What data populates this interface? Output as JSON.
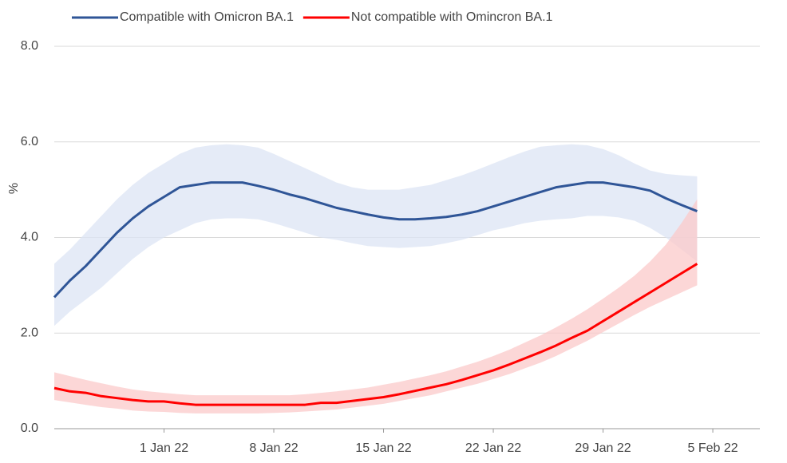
{
  "chart_data": {
    "type": "line",
    "y_label": "%",
    "x": [
      "2021-12-25",
      "2021-12-26",
      "2021-12-27",
      "2021-12-28",
      "2021-12-29",
      "2021-12-30",
      "2021-12-31",
      "2022-01-01",
      "2022-01-02",
      "2022-01-03",
      "2022-01-04",
      "2022-01-05",
      "2022-01-06",
      "2022-01-07",
      "2022-01-08",
      "2022-01-09",
      "2022-01-10",
      "2022-01-11",
      "2022-01-12",
      "2022-01-13",
      "2022-01-14",
      "2022-01-15",
      "2022-01-16",
      "2022-01-17",
      "2022-01-18",
      "2022-01-19",
      "2022-01-20",
      "2022-01-21",
      "2022-01-22",
      "2022-01-23",
      "2022-01-24",
      "2022-01-25",
      "2022-01-26",
      "2022-01-27",
      "2022-01-28",
      "2022-01-29",
      "2022-01-30",
      "2022-01-31",
      "2022-02-01",
      "2022-02-02",
      "2022-02-03",
      "2022-02-04"
    ],
    "xlim": [
      "2021-12-25",
      "2022-02-08"
    ],
    "xticks": [
      {
        "value": "2022-01-01",
        "label": "1 Jan 22"
      },
      {
        "value": "2022-01-08",
        "label": "8 Jan 22"
      },
      {
        "value": "2022-01-15",
        "label": "15 Jan 22"
      },
      {
        "value": "2022-01-22",
        "label": "22 Jan 22"
      },
      {
        "value": "2022-01-29",
        "label": "29 Jan 22"
      },
      {
        "value": "2022-02-05",
        "label": "5 Feb 22"
      }
    ],
    "ylim": [
      0,
      8
    ],
    "yticks": [
      {
        "value": 0,
        "label": "0.0"
      },
      {
        "value": 2,
        "label": "2.0"
      },
      {
        "value": 4,
        "label": "4.0"
      },
      {
        "value": 6,
        "label": "6.0"
      },
      {
        "value": 8,
        "label": "8.0"
      }
    ],
    "grid": true,
    "legend": "top",
    "series": [
      {
        "name": "Compatible with Omicron BA.1",
        "color": "#2f5597",
        "band_color": "#dce4f4",
        "values": [
          2.75,
          3.1,
          3.4,
          3.75,
          4.1,
          4.4,
          4.65,
          4.85,
          5.05,
          5.1,
          5.15,
          5.15,
          5.15,
          5.08,
          5.0,
          4.9,
          4.82,
          4.72,
          4.62,
          4.55,
          4.48,
          4.42,
          4.38,
          4.38,
          4.4,
          4.43,
          4.48,
          4.55,
          4.65,
          4.75,
          4.85,
          4.95,
          5.05,
          5.1,
          5.15,
          5.15,
          5.1,
          5.05,
          4.98,
          4.82,
          4.68,
          4.55
        ],
        "lower": [
          2.15,
          2.45,
          2.7,
          2.95,
          3.25,
          3.55,
          3.8,
          4.0,
          4.15,
          4.3,
          4.38,
          4.4,
          4.4,
          4.38,
          4.3,
          4.2,
          4.1,
          4.0,
          3.95,
          3.88,
          3.82,
          3.8,
          3.78,
          3.8,
          3.82,
          3.88,
          3.95,
          4.05,
          4.15,
          4.22,
          4.3,
          4.35,
          4.38,
          4.4,
          4.45,
          4.45,
          4.42,
          4.35,
          4.2,
          4.0,
          3.75,
          3.5
        ],
        "upper": [
          3.45,
          3.75,
          4.1,
          4.45,
          4.8,
          5.1,
          5.35,
          5.55,
          5.75,
          5.88,
          5.93,
          5.95,
          5.93,
          5.88,
          5.75,
          5.6,
          5.45,
          5.3,
          5.15,
          5.05,
          5.0,
          5.0,
          5.0,
          5.05,
          5.1,
          5.2,
          5.3,
          5.42,
          5.55,
          5.68,
          5.8,
          5.9,
          5.93,
          5.95,
          5.93,
          5.85,
          5.72,
          5.55,
          5.4,
          5.33,
          5.3,
          5.28
        ]
      },
      {
        "name": "Not compatible with Omincron BA.1",
        "color": "#ff0000",
        "band_color": "#fbcaca",
        "values": [
          0.85,
          0.78,
          0.75,
          0.68,
          0.64,
          0.6,
          0.57,
          0.57,
          0.53,
          0.5,
          0.5,
          0.5,
          0.5,
          0.5,
          0.5,
          0.5,
          0.5,
          0.54,
          0.54,
          0.58,
          0.62,
          0.66,
          0.72,
          0.79,
          0.86,
          0.93,
          1.02,
          1.12,
          1.22,
          1.34,
          1.47,
          1.6,
          1.74,
          1.9,
          2.05,
          2.25,
          2.45,
          2.65,
          2.85,
          3.05,
          3.25,
          3.45
        ],
        "lower": [
          0.6,
          0.55,
          0.5,
          0.45,
          0.42,
          0.38,
          0.36,
          0.35,
          0.33,
          0.32,
          0.32,
          0.32,
          0.32,
          0.32,
          0.33,
          0.34,
          0.36,
          0.38,
          0.4,
          0.44,
          0.48,
          0.52,
          0.58,
          0.64,
          0.7,
          0.78,
          0.86,
          0.94,
          1.04,
          1.14,
          1.26,
          1.38,
          1.52,
          1.68,
          1.84,
          2.02,
          2.2,
          2.38,
          2.55,
          2.7,
          2.85,
          3.0
        ],
        "upper": [
          1.18,
          1.1,
          1.02,
          0.95,
          0.88,
          0.82,
          0.78,
          0.75,
          0.72,
          0.7,
          0.7,
          0.7,
          0.7,
          0.7,
          0.7,
          0.7,
          0.72,
          0.75,
          0.78,
          0.82,
          0.86,
          0.92,
          0.98,
          1.05,
          1.12,
          1.2,
          1.3,
          1.4,
          1.52,
          1.65,
          1.8,
          1.95,
          2.12,
          2.3,
          2.5,
          2.72,
          2.95,
          3.2,
          3.5,
          3.85,
          4.3,
          4.8
        ]
      }
    ]
  }
}
